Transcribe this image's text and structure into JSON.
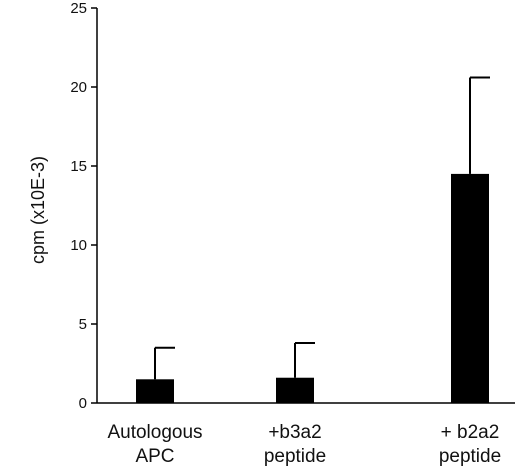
{
  "chart_data": {
    "type": "bar",
    "categories": [
      [
        "Autologous",
        "APC"
      ],
      [
        "+b3a2",
        " peptide"
      ],
      [
        "+ b2a2",
        "peptide"
      ]
    ],
    "values": [
      1.5,
      1.6,
      14.5
    ],
    "errors": [
      2.0,
      2.2,
      6.1
    ],
    "ylabel": "cpm  (x10E-3)",
    "ylim": [
      0,
      25
    ],
    "yticks": [
      0,
      5,
      10,
      15,
      20,
      25
    ],
    "grid": false,
    "bar_color": "#000000"
  }
}
